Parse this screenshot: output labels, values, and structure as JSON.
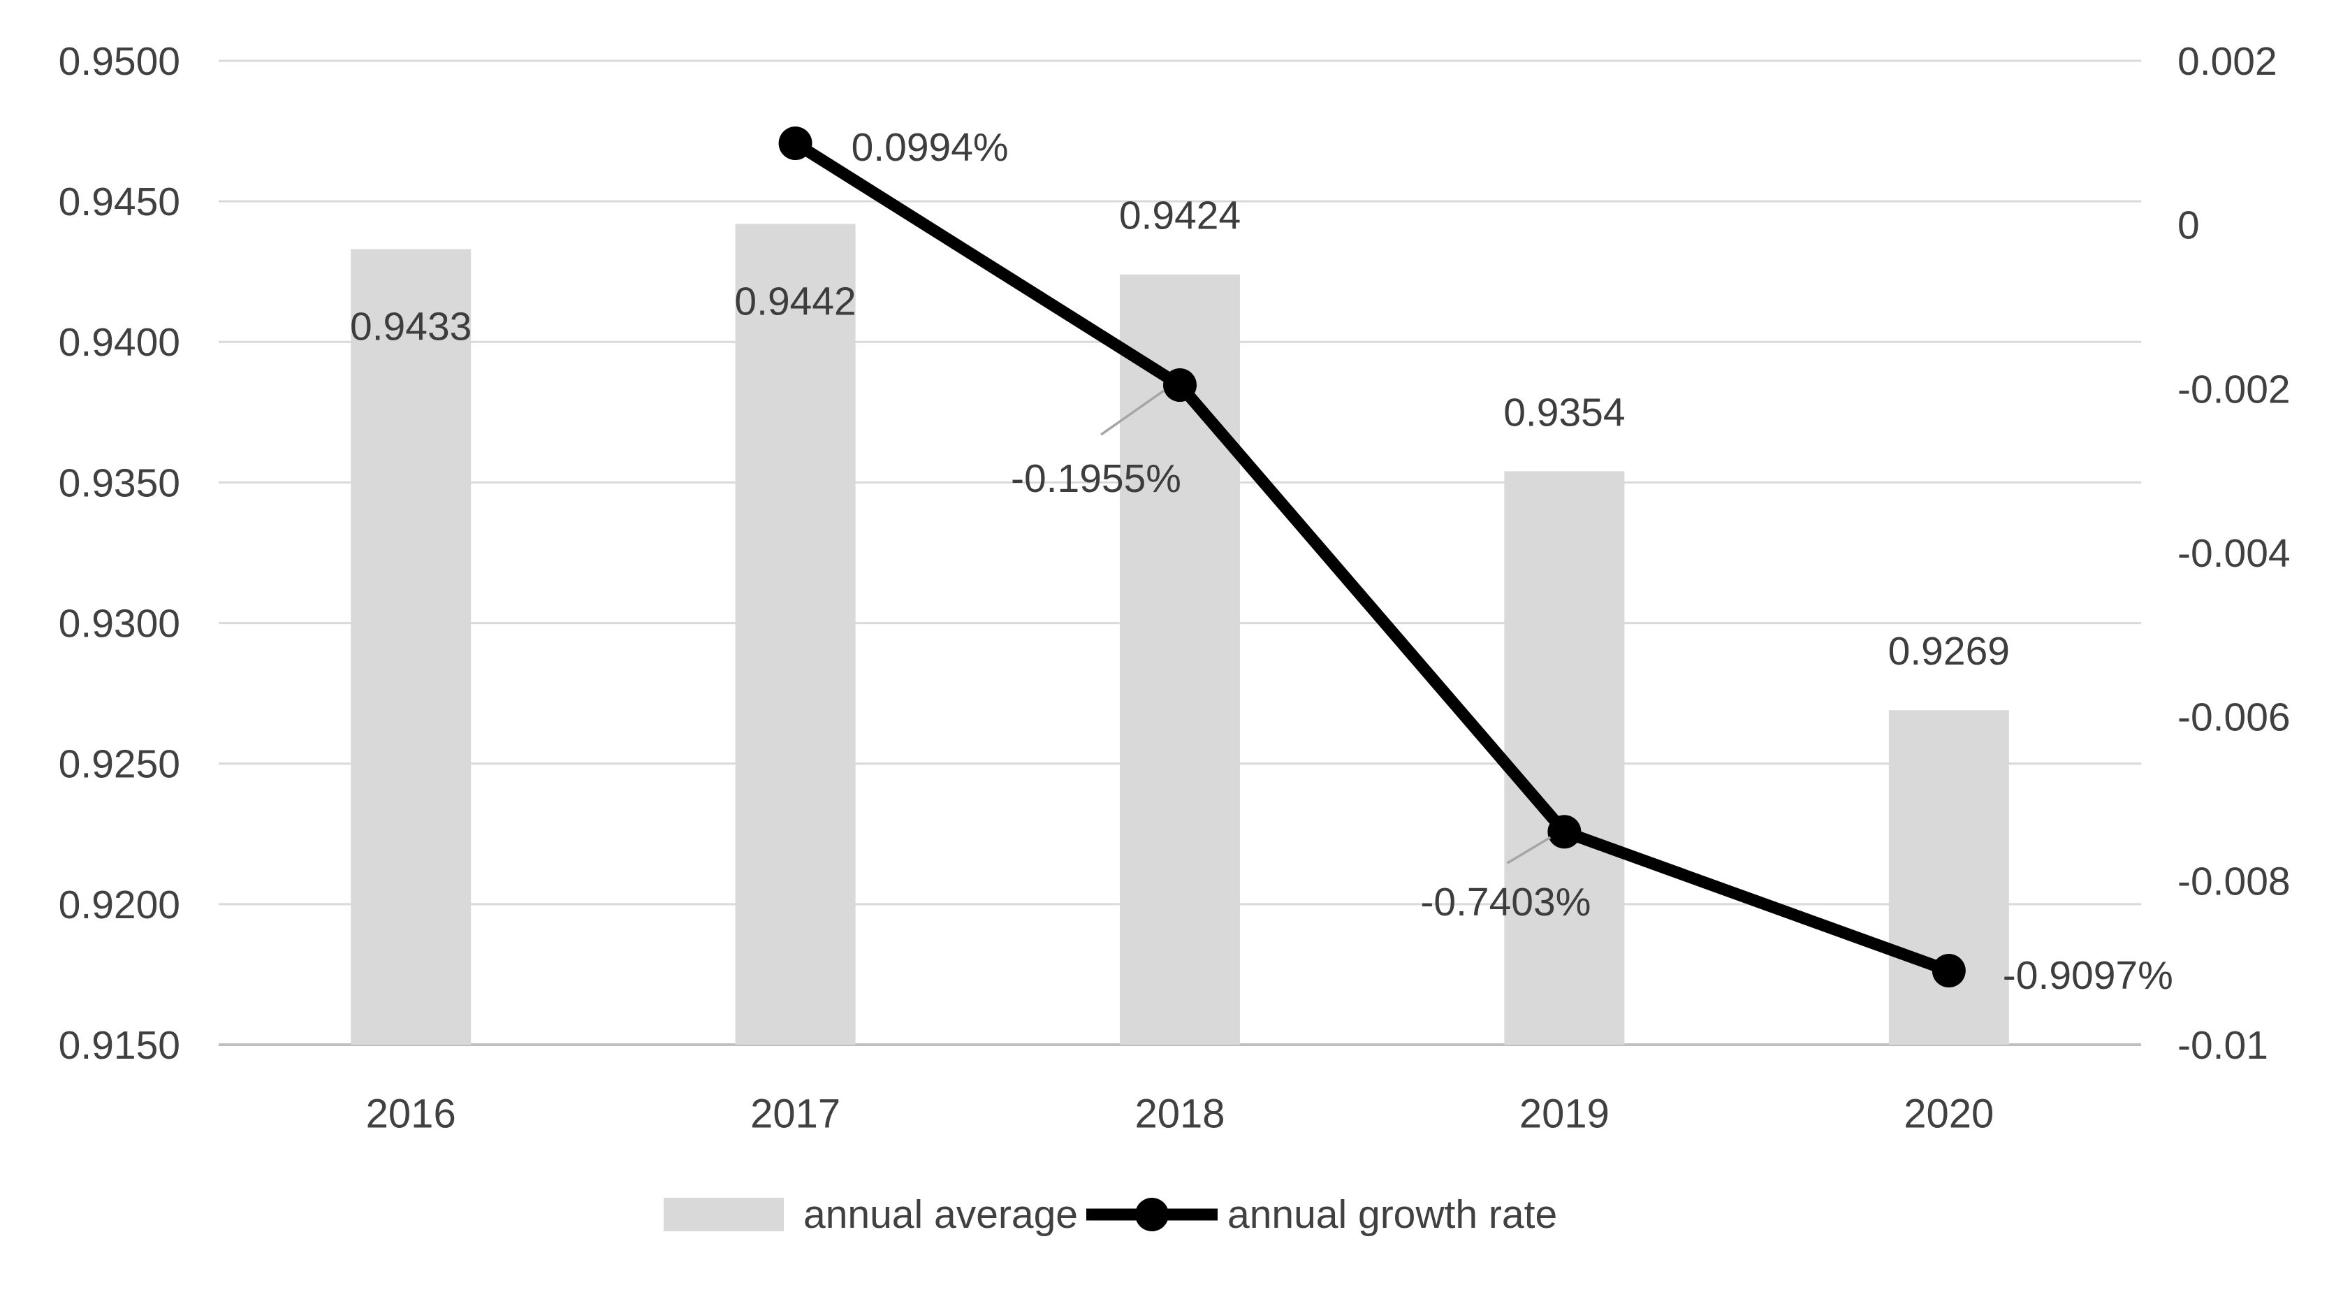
{
  "chart_data": {
    "type": "combo",
    "title": "",
    "categories": [
      "2016",
      "2017",
      "2018",
      "2019",
      "2020"
    ],
    "series": [
      {
        "name": "annual average",
        "type": "bar",
        "axis": "left",
        "values": [
          0.9433,
          0.9442,
          0.9424,
          0.9354,
          0.9269
        ],
        "data_labels": [
          "0.9433",
          "0.9442",
          "0.9424",
          "0.9354",
          "0.9269"
        ],
        "label_placement": [
          "inside-end",
          "inside-end",
          "outside-end",
          "outside-end",
          "outside-end"
        ]
      },
      {
        "name": "annual growth rate",
        "type": "line",
        "axis": "right",
        "values": [
          null,
          0.000994,
          -0.001955,
          -0.007403,
          -0.009097
        ],
        "data_labels": [
          null,
          "0.0994%",
          "-0.1955%",
          "-0.7403%",
          "-0.9097%"
        ],
        "label_anchors": [
          null,
          {
            "anchor": "start",
            "dx": 80,
            "dy": 5
          },
          {
            "anchor": "middle",
            "dx": -120,
            "dy": 133,
            "leader": [
              -23,
              8,
              -113,
              71
            ]
          },
          {
            "anchor": "middle",
            "dx": -84,
            "dy": 100,
            "leader": [
              -20,
              8,
              -82,
              45
            ]
          },
          {
            "anchor": "start",
            "dx": 77,
            "dy": 6
          }
        ]
      }
    ],
    "left_axis": {
      "min": 0.915,
      "max": 0.95,
      "step": 0.005,
      "tick_labels": [
        "0.9500",
        "0.9450",
        "0.9400",
        "0.9350",
        "0.9300",
        "0.9250",
        "0.9200",
        "0.9150"
      ]
    },
    "right_axis": {
      "min": -0.01,
      "max": 0.002,
      "step": 0.002,
      "tick_labels": [
        "0.002",
        "0",
        "-0.002",
        "-0.004",
        "-0.006",
        "-0.008",
        "-0.01"
      ]
    },
    "grid": true,
    "legend_position": "bottom"
  },
  "legend": {
    "items": [
      {
        "label": "annual average",
        "marker": "bar-swatch"
      },
      {
        "label": "annual growth rate",
        "marker": "line-with-dot"
      }
    ]
  },
  "colors": {
    "bar_fill": "#d9d9d9",
    "gridline": "#d9d9d9",
    "axis_line": "#bfbfbf",
    "line_series": "#000000",
    "marker_fill": "#000000",
    "leader_line": "#a6a6a6",
    "text": "#404040",
    "background": "#ffffff"
  }
}
